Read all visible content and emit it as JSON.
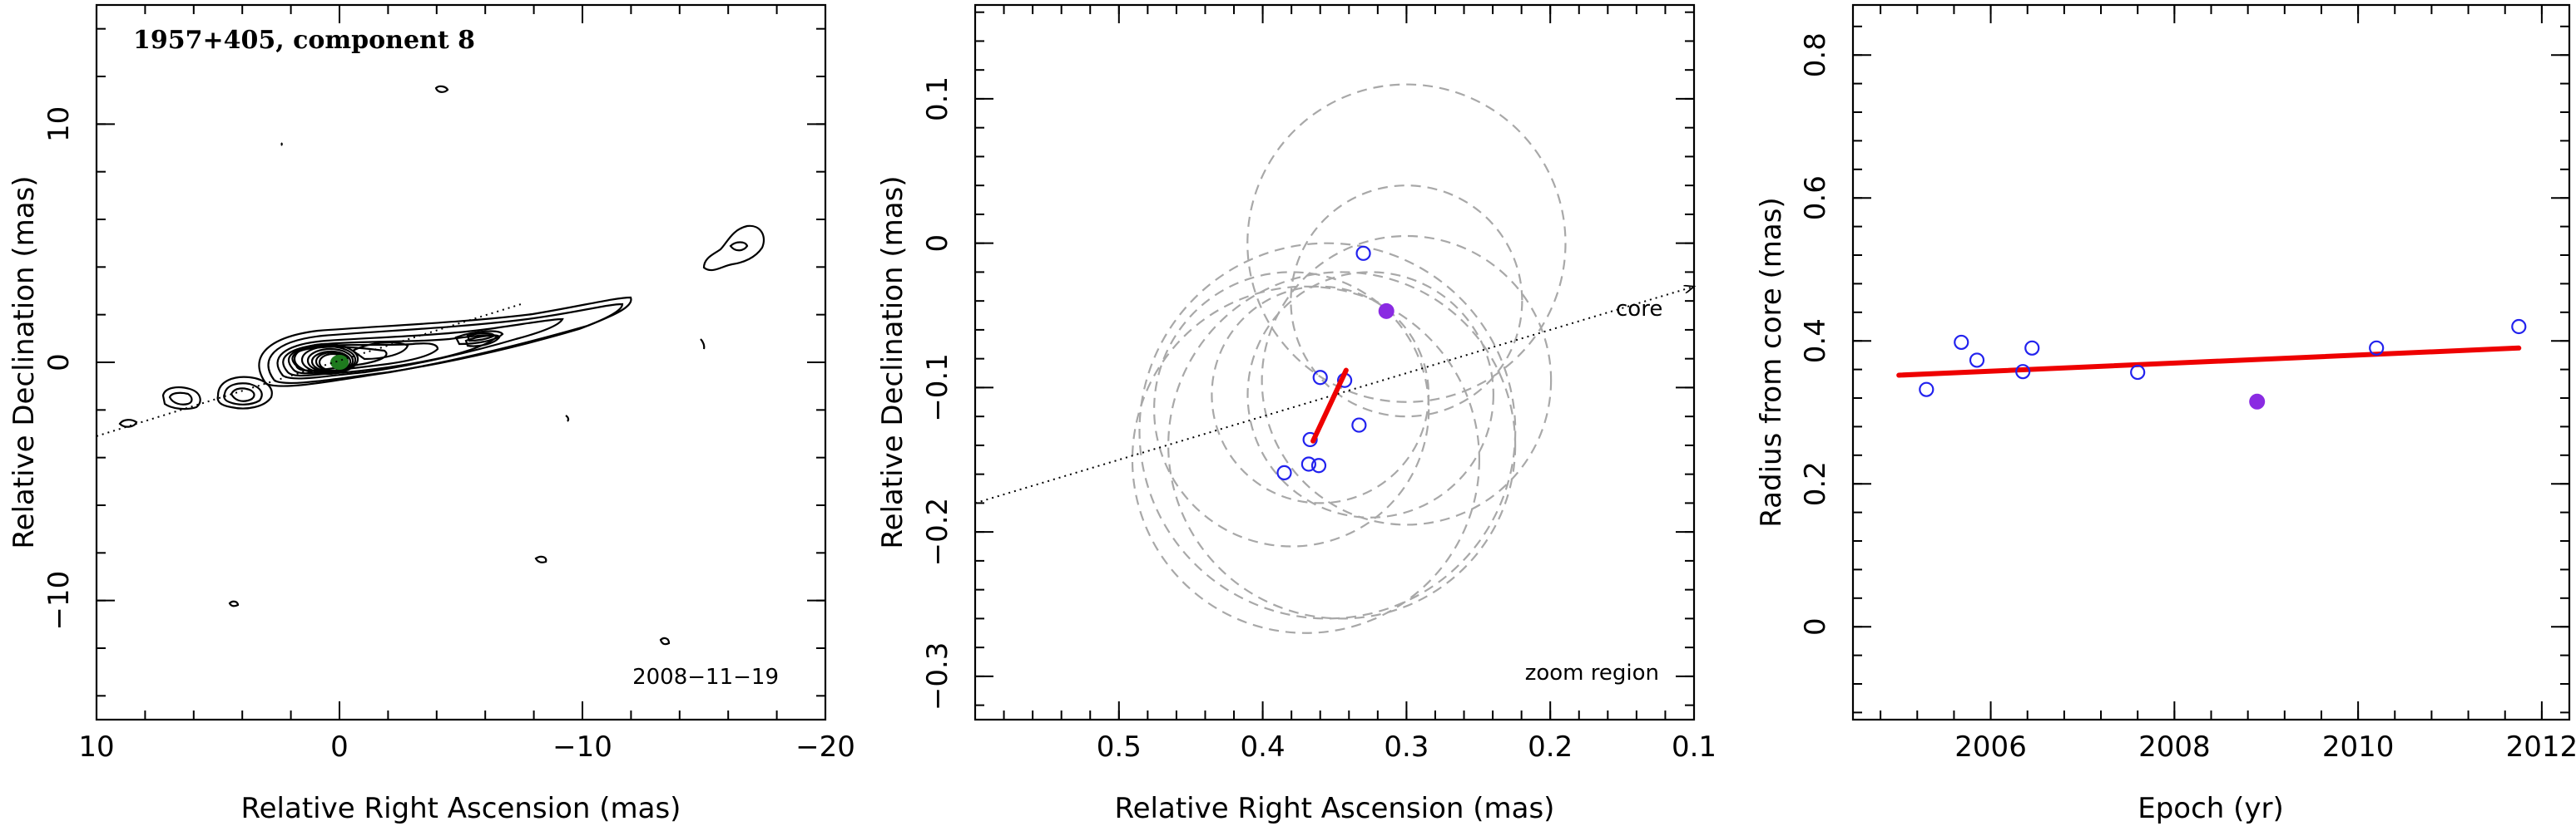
{
  "chart_data": [
    {
      "type": "contour",
      "title": "1957+405, component 8",
      "xlabel": "Relative Right Ascension (mas)",
      "ylabel": "Relative Declination (mas)",
      "xlim": [
        10,
        -20
      ],
      "ylim": [
        -15,
        15
      ],
      "xticks": [
        10,
        0,
        -10,
        -20
      ],
      "yticks": [
        -10,
        0,
        10
      ],
      "annotation": "2008−11−19",
      "core_marker": {
        "x": 0,
        "y": 0,
        "color": "#1e7a1e"
      },
      "jet_axis": {
        "x": [
          10,
          -7.5
        ],
        "y": [
          -3.1,
          2.45
        ]
      }
    },
    {
      "type": "scatter",
      "xlabel": "Relative Right Ascension (mas)",
      "ylabel": "Relative Declination (mas)",
      "xlim": [
        0.6,
        0.1
      ],
      "ylim": [
        -0.33,
        0.165
      ],
      "xticks": [
        0.5,
        0.4,
        0.3,
        0.2,
        0.1
      ],
      "yticks": [
        -0.3,
        -0.2,
        -0.1,
        0,
        0.1
      ],
      "annotation": "zoom region",
      "axis_label": "core",
      "jet_axis": {
        "x": [
          0.6,
          0.1
        ],
        "y": [
          -0.18,
          -0.03
        ]
      },
      "open_points": [
        {
          "x": 0.33,
          "y": -0.007
        },
        {
          "x": 0.36,
          "y": -0.093
        },
        {
          "x": 0.343,
          "y": -0.095
        },
        {
          "x": 0.333,
          "y": -0.126
        },
        {
          "x": 0.367,
          "y": -0.136
        },
        {
          "x": 0.385,
          "y": -0.159
        },
        {
          "x": 0.368,
          "y": -0.153
        },
        {
          "x": 0.361,
          "y": -0.154
        }
      ],
      "filled_points": [
        {
          "x": 0.314,
          "y": -0.047
        }
      ],
      "fit_line": {
        "x": [
          0.365,
          0.342
        ],
        "y": [
          -0.137,
          -0.088
        ]
      },
      "circles": [
        {
          "x": 0.3,
          "y": 0.0,
          "r": 0.11
        },
        {
          "x": 0.3,
          "y": -0.04,
          "r": 0.08
        },
        {
          "x": 0.3,
          "y": -0.095,
          "r": 0.1
        },
        {
          "x": 0.325,
          "y": -0.105,
          "r": 0.085
        },
        {
          "x": 0.345,
          "y": -0.14,
          "r": 0.12
        },
        {
          "x": 0.355,
          "y": -0.13,
          "r": 0.13
        },
        {
          "x": 0.37,
          "y": -0.15,
          "r": 0.12
        },
        {
          "x": 0.38,
          "y": -0.115,
          "r": 0.095
        },
        {
          "x": 0.36,
          "y": -0.105,
          "r": 0.075
        }
      ]
    },
    {
      "type": "scatter",
      "xlabel": "Epoch (yr)",
      "ylabel": "Radius from core (mas)",
      "xlim": [
        2004.5,
        2012.3
      ],
      "ylim": [
        -0.13,
        0.87
      ],
      "xticks": [
        2006,
        2008,
        2010,
        2012
      ],
      "yticks": [
        0,
        0.2,
        0.4,
        0.6,
        0.8
      ],
      "open_points": [
        {
          "x": 2005.3,
          "y": 0.332
        },
        {
          "x": 2005.68,
          "y": 0.398
        },
        {
          "x": 2005.85,
          "y": 0.373
        },
        {
          "x": 2006.35,
          "y": 0.357
        },
        {
          "x": 2006.45,
          "y": 0.39
        },
        {
          "x": 2007.6,
          "y": 0.356
        },
        {
          "x": 2010.2,
          "y": 0.39
        },
        {
          "x": 2011.75,
          "y": 0.42
        }
      ],
      "filled_points": [
        {
          "x": 2008.9,
          "y": 0.315
        }
      ],
      "fit_line": {
        "x": [
          2005.0,
          2011.75
        ],
        "y": [
          0.352,
          0.39
        ]
      }
    }
  ]
}
